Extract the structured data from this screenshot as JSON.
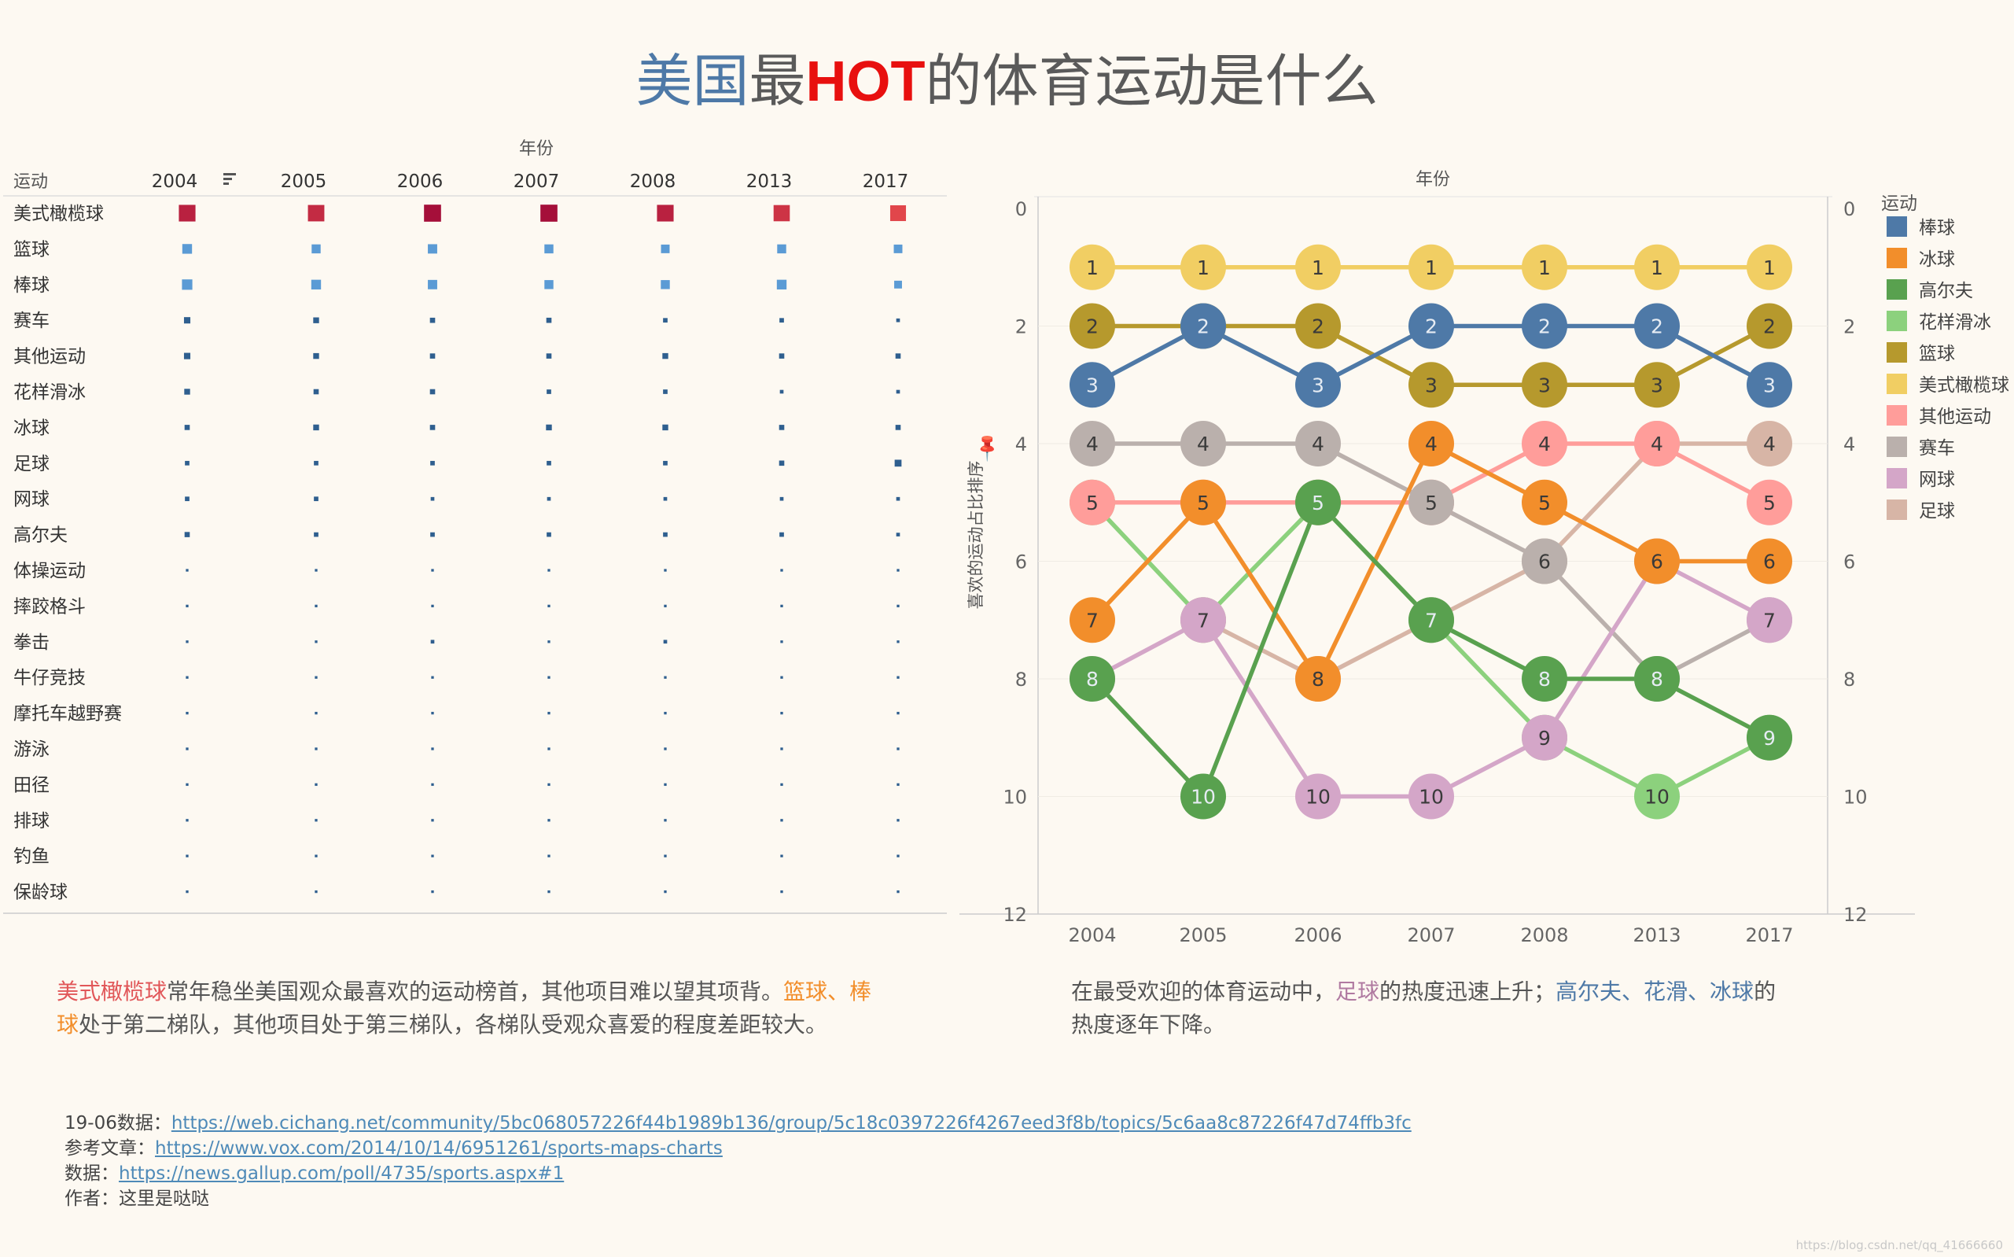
{
  "title": {
    "part1": "美国",
    "part2": "最",
    "part3": "HOT",
    "part4": "的体育运动是什么"
  },
  "table": {
    "top_header": "年份",
    "row_header": "运动",
    "years": [
      "2004",
      "2005",
      "2006",
      "2007",
      "2008",
      "2013",
      "2017"
    ],
    "sports": [
      "美式橄榄球",
      "篮球",
      "棒球",
      "赛车",
      "其他运动",
      "花样滑冰",
      "冰球",
      "足球",
      "网球",
      "高尔夫",
      "体操运动",
      "摔跤格斗",
      "拳击",
      "牛仔竞技",
      "摩托车越野赛",
      "游泳",
      "田径",
      "排球",
      "钓鱼",
      "保龄球"
    ],
    "values": [
      [
        41,
        40,
        43,
        43,
        41,
        39,
        37
      ],
      [
        14,
        12,
        13,
        12,
        11,
        12,
        11
      ],
      [
        16,
        14,
        13,
        12,
        12,
        14,
        9
      ],
      [
        6,
        5,
        4,
        4,
        3,
        3,
        2
      ],
      [
        6,
        5,
        4,
        4,
        5,
        4,
        4
      ],
      [
        5,
        4,
        4,
        3,
        3,
        2,
        2
      ],
      [
        4,
        5,
        4,
        5,
        5,
        4,
        4
      ],
      [
        3,
        3,
        3,
        3,
        3,
        4,
        7
      ],
      [
        3,
        3,
        2,
        2,
        2,
        2,
        2
      ],
      [
        4,
        3,
        3,
        3,
        3,
        3,
        2
      ],
      [
        1,
        1,
        1,
        1,
        1,
        1,
        1
      ],
      [
        1,
        1,
        1,
        1,
        1,
        1,
        1
      ],
      [
        1,
        1,
        2,
        1,
        2,
        1,
        1
      ],
      [
        1,
        1,
        1,
        1,
        1,
        1,
        1
      ],
      [
        1,
        1,
        1,
        1,
        1,
        1,
        1
      ],
      [
        1,
        1,
        1,
        1,
        1,
        1,
        1
      ],
      [
        1,
        1,
        1,
        1,
        1,
        1,
        1
      ],
      [
        1,
        1,
        1,
        1,
        1,
        1,
        1
      ],
      [
        1,
        1,
        1,
        1,
        1,
        1,
        1
      ],
      [
        1,
        1,
        1,
        1,
        1,
        1,
        1
      ]
    ]
  },
  "chart_data": {
    "type": "line",
    "title": "年份",
    "ylabel": "喜欢的运动占比排序",
    "x": [
      "2004",
      "2005",
      "2006",
      "2007",
      "2008",
      "2013",
      "2017"
    ],
    "ylim": [
      0,
      12
    ],
    "y_reversed": true,
    "y_ticks": [
      0,
      2,
      4,
      6,
      8,
      10,
      12
    ],
    "legend_title": "运动",
    "legend_position": "right",
    "series": [
      {
        "name": "棒球",
        "color": "#4e79a7",
        "values": [
          3,
          2,
          3,
          2,
          2,
          2,
          3
        ]
      },
      {
        "name": "冰球",
        "color": "#f28e2b",
        "values": [
          7,
          5,
          8,
          4,
          5,
          6,
          6
        ]
      },
      {
        "name": "高尔夫",
        "color": "#59a14f",
        "values": [
          8,
          10,
          5,
          7,
          8,
          8,
          9
        ]
      },
      {
        "name": "花样滑冰",
        "color": "#8cd17d",
        "values": [
          5,
          7,
          5,
          7,
          9,
          10,
          9
        ]
      },
      {
        "name": "篮球",
        "color": "#b6992d",
        "values": [
          2,
          2,
          2,
          3,
          3,
          3,
          2
        ]
      },
      {
        "name": "美式橄榄球",
        "color": "#f1ce63",
        "values": [
          1,
          1,
          1,
          1,
          1,
          1,
          1
        ]
      },
      {
        "name": "其他运动",
        "color": "#ff9d9a",
        "values": [
          5,
          5,
          5,
          5,
          4,
          4,
          5
        ]
      },
      {
        "name": "赛车",
        "color": "#bab0ac",
        "values": [
          4,
          4,
          4,
          5,
          6,
          8,
          7
        ]
      },
      {
        "name": "网球",
        "color": "#d4a6c8",
        "values": [
          8,
          7,
          10,
          10,
          9,
          6,
          7
        ]
      },
      {
        "name": "足球",
        "color": "#d7b5a6",
        "values": [
          null,
          7,
          8,
          7,
          6,
          4,
          4
        ]
      }
    ]
  },
  "descriptions": {
    "left": {
      "s1": "美式橄榄球",
      "s2": "常年稳坐美国观众最喜欢的运动榜首，其他项目难以望其项背。",
      "s3": "篮球、棒",
      "s4": "球",
      "s5": "处于第二梯队，其他项目处于第三梯队，各梯队受观众喜爱的程度差距较大。"
    },
    "right": {
      "s1": "在最受欢迎的体育运动中，",
      "s2": "足球",
      "s3": "的热度迅速上升；",
      "s4": "高尔夫、花滑、冰球",
      "s5": "的",
      "s6": "热度逐年下降。"
    }
  },
  "sources": {
    "l1_label": "19-06数据：",
    "l1_url": "https://web.cichang.net/community/5bc068057226f44b1989b136/group/5c18c0397226f4267eed3f8b/topics/5c6aa8c87226f47d74ffb3fc",
    "l2_label": "参考文章：",
    "l2_url": "https://www.vox.com/2014/10/14/6951261/sports-maps-charts",
    "l3_label": "数据：",
    "l3_url": "https://news.gallup.com/poll/4735/sports.aspx#1",
    "l4_label": "作者：",
    "l4_value": "这里是哒哒"
  },
  "watermark": "https://blog.csdn.net/qq_41666660"
}
